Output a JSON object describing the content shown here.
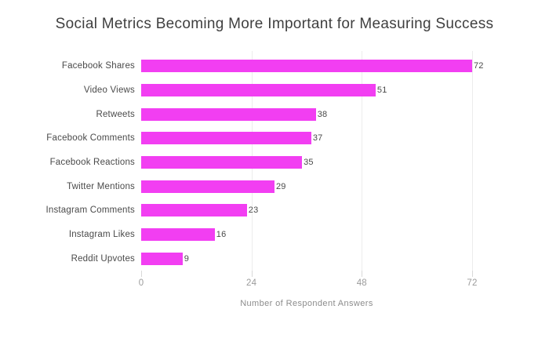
{
  "title": "Social Metrics Becoming More Important for Measuring Success",
  "chart_data": {
    "type": "bar",
    "orientation": "horizontal",
    "title": "Social Metrics Becoming More Important for Measuring Success",
    "categories": [
      "Facebook Shares",
      "Video Views",
      "Retweets",
      "Facebook Comments",
      "Facebook Reactions",
      "Twitter Mentions",
      "Instagram Comments",
      "Instagram Likes",
      "Reddit Upvotes"
    ],
    "values": [
      72,
      51,
      38,
      37,
      35,
      29,
      23,
      16,
      9
    ],
    "xlabel": "Number of Respondent Answers",
    "ylabel": "",
    "xticks": [
      0,
      24,
      48,
      72
    ],
    "xlim": [
      0,
      86
    ],
    "grid": "vertical-faint",
    "legend": "none",
    "value_labels_shown": true,
    "bar_color": "#f23ef2",
    "gridline_color": "#ececec"
  }
}
